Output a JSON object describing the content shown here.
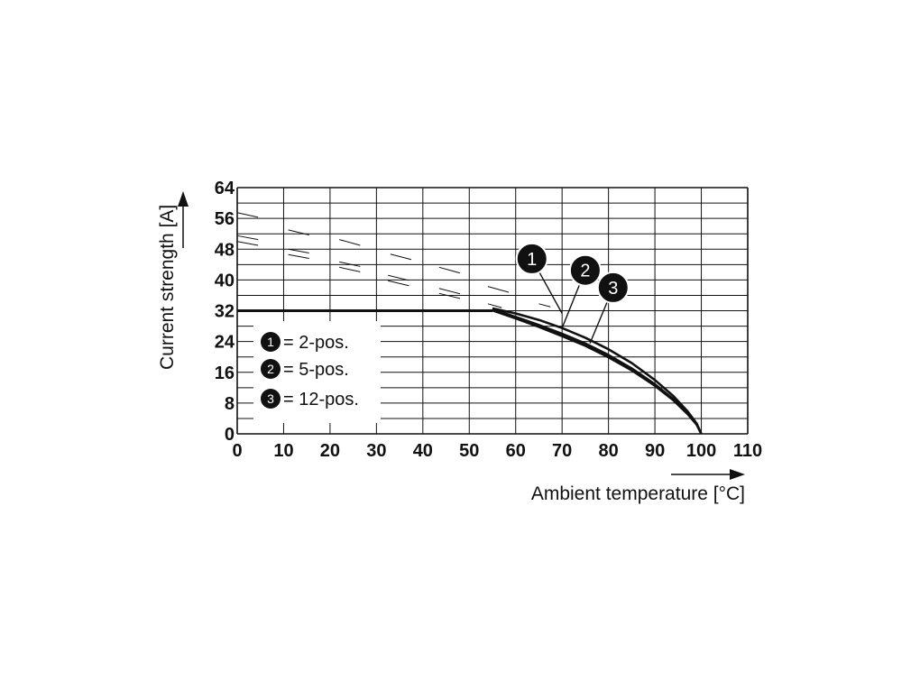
{
  "chart_data": {
    "type": "line",
    "xlabel": "Ambient temperature [°C]",
    "ylabel": "Current strength [A]",
    "xlim": [
      0,
      110
    ],
    "ylim": [
      0,
      64
    ],
    "x_ticks": [
      0,
      10,
      20,
      30,
      40,
      50,
      60,
      70,
      80,
      90,
      100,
      110
    ],
    "y_ticks": [
      0,
      8,
      16,
      24,
      32,
      40,
      48,
      56,
      64
    ],
    "grid": true,
    "legend_position": "bottom-left",
    "legend": [
      {
        "marker": "1",
        "label": "= 2-pos."
      },
      {
        "marker": "2",
        "label": "= 5-pos."
      },
      {
        "marker": "3",
        "label": "= 12-pos."
      }
    ],
    "current_limit": {
      "value": 32,
      "x_range": [
        0,
        55
      ]
    },
    "series": [
      {
        "marker": "1",
        "x": [
          55,
          60,
          65,
          70,
          75,
          80,
          85,
          90,
          94,
          97,
          99,
          100
        ],
        "y": [
          32.6,
          31.3,
          29.6,
          27.5,
          25.0,
          22.0,
          18.4,
          14.0,
          9.8,
          5.9,
          2.7,
          0
        ]
      },
      {
        "marker": "2",
        "x": [
          55,
          60,
          65,
          70,
          75,
          80,
          85,
          90,
          94,
          97,
          99,
          100
        ],
        "y": [
          32.4,
          30.4,
          28.3,
          26.0,
          23.5,
          20.5,
          17.0,
          12.9,
          9.0,
          5.4,
          2.5,
          0
        ]
      },
      {
        "marker": "3",
        "x": [
          55,
          60,
          65,
          70,
          75,
          80,
          85,
          90,
          94,
          97,
          99,
          100
        ],
        "y": [
          32.1,
          30.0,
          27.8,
          25.4,
          22.9,
          19.9,
          16.5,
          12.5,
          8.7,
          5.2,
          2.4,
          0
        ]
      }
    ],
    "annotations": [
      {
        "marker": "1",
        "x": 63.5,
        "y": 45.5,
        "points_to": [
          70,
          31.3
        ]
      },
      {
        "marker": "2",
        "x": 75,
        "y": 42.5,
        "points_to": [
          70,
          27.5
        ]
      },
      {
        "marker": "3",
        "x": 81,
        "y": 38,
        "points_to": [
          76,
          23.5
        ]
      }
    ],
    "colors": {
      "line": "#111111",
      "grid": "#111111",
      "badge": "#111111"
    }
  }
}
